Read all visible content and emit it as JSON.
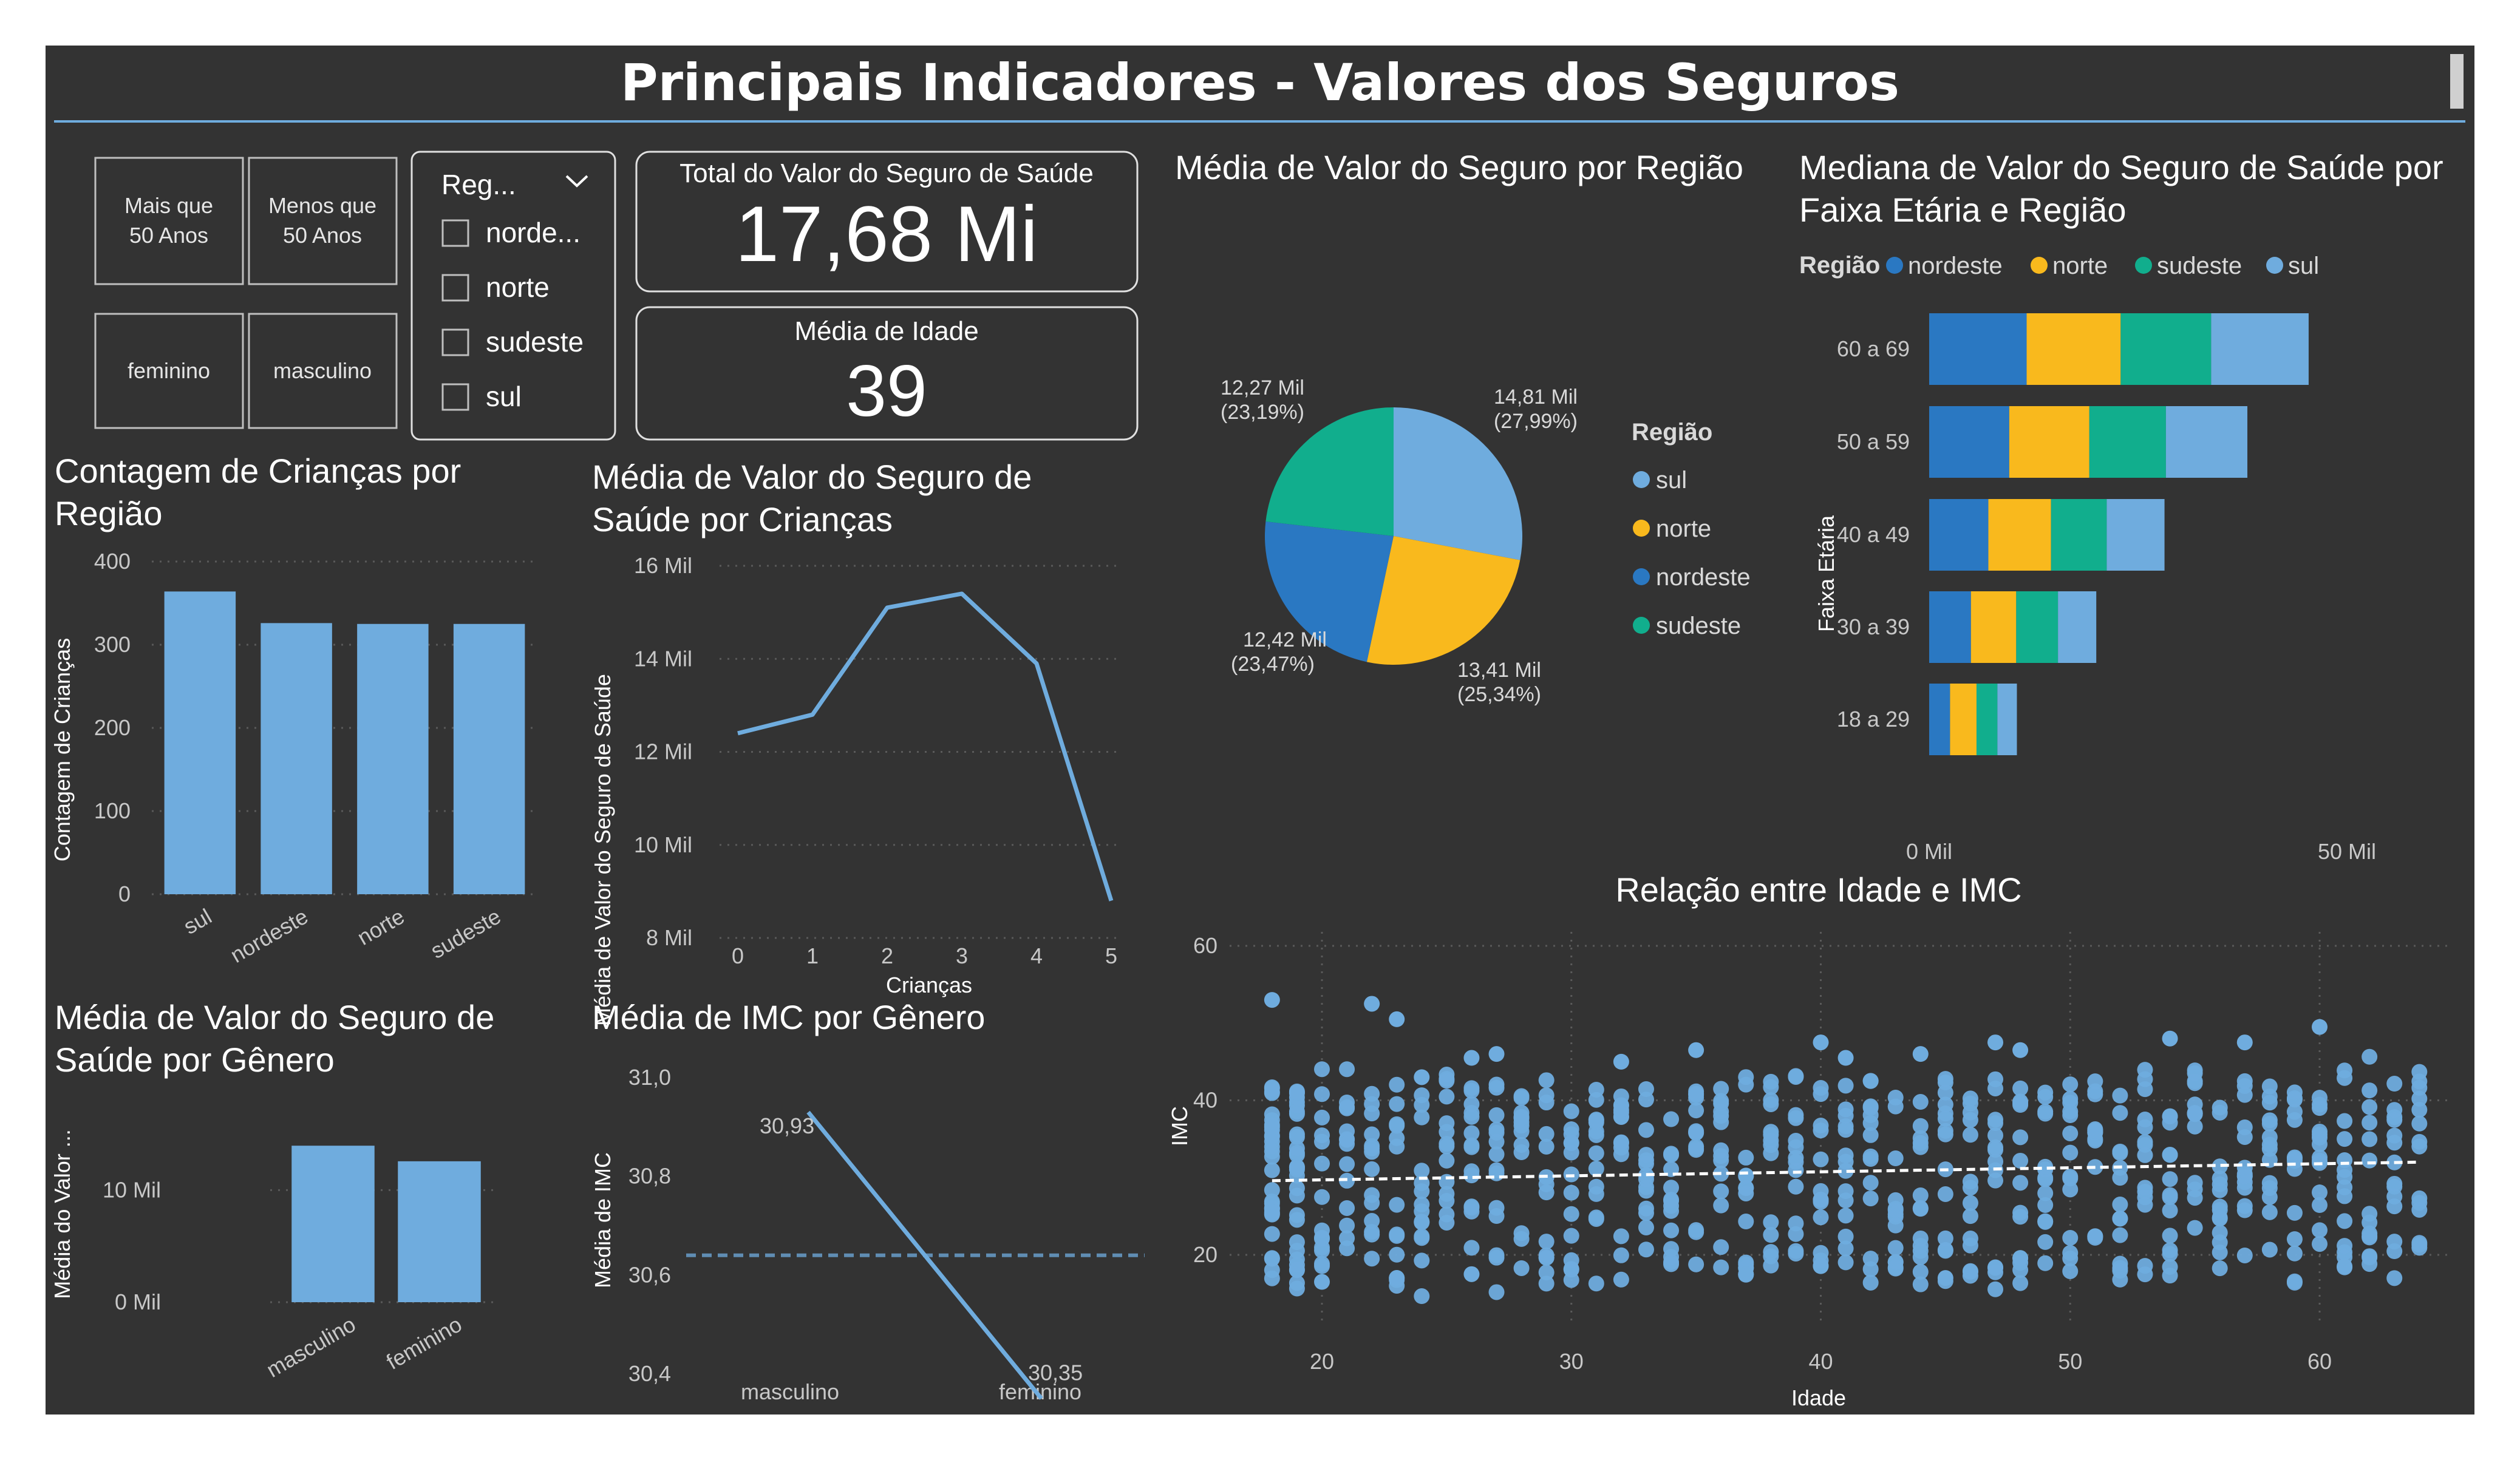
{
  "header": {
    "title": "Principais Indicadores - Valores dos Seguros"
  },
  "colors": {
    "background": "#333333",
    "bar": "#6FACDE",
    "nordeste": "#2A78C2",
    "norte": "#F9B91D",
    "sudeste": "#11AE8D",
    "sul": "#6FACDE",
    "accent_line": "#6FACDE"
  },
  "buttons": [
    "Mais que 50 Anos",
    "Menos que 50 Anos",
    "feminino",
    "masculino"
  ],
  "slicer": {
    "title": "Reg...",
    "items": [
      "norde...",
      "norte",
      "sudeste",
      "sul"
    ]
  },
  "cards": {
    "total_title": "Total do Valor do Seguro de Saúde",
    "total_value": "17,68 Mi",
    "idade_title": "Média de Idade",
    "idade_value": "39"
  },
  "chart_data": [
    {
      "id": "criancas_regiao",
      "type": "bar",
      "title": "Contagem de Crianças por Região",
      "ylabel": "Contagem de Crianças",
      "xlabel": "",
      "categories": [
        "sul",
        "nordeste",
        "norte",
        "sudeste"
      ],
      "values": [
        364,
        326,
        325,
        325
      ],
      "ylim": [
        0,
        400
      ],
      "yticks": [
        "0",
        "100",
        "200",
        "300",
        "400"
      ]
    },
    {
      "id": "seguro_criancas",
      "type": "line",
      "title": "Média de Valor do Seguro de Saúde por Crianças",
      "xlabel": "Crianças",
      "ylabel": "Média de Valor do Seguro de Saúde",
      "x": [
        0,
        1,
        2,
        3,
        4,
        5
      ],
      "values": [
        12.4,
        12.8,
        15.1,
        15.4,
        13.9,
        8.8
      ],
      "ylim": [
        8,
        16
      ],
      "yticks": [
        "8 Mil",
        "10 Mil",
        "12 Mil",
        "14 Mil",
        "16 Mil"
      ]
    },
    {
      "id": "seguro_genero",
      "type": "bar",
      "title": "Média de Valor do Seguro de Saúde por Gênero",
      "ylabel": "Média do Valor ...",
      "xlabel": "",
      "categories": [
        "masculino",
        "feminino"
      ],
      "values": [
        13.96,
        12.57
      ],
      "ylim": [
        0,
        15
      ],
      "yticks": [
        "0 Mil",
        "10 Mil"
      ]
    },
    {
      "id": "imc_genero",
      "type": "line",
      "title": "Média de IMC por Gênero",
      "ylabel": "Média de IMC",
      "xlabel": "",
      "categories": [
        "masculino",
        "feminino"
      ],
      "values": [
        30.93,
        30.35
      ],
      "labels": [
        "30,93",
        "30,35"
      ],
      "average": 30.64,
      "ylim": [
        30.35,
        31.05
      ],
      "yticks": [
        "30,4",
        "30,6",
        "30,8",
        "31,0"
      ]
    },
    {
      "id": "seguro_regiao",
      "type": "pie",
      "title": "Média de Valor do Seguro por Região",
      "legend_title": "Região",
      "slices": [
        {
          "name": "sul",
          "value": 14.81,
          "label": "14,81 Mil",
          "pct": "(27,99%)"
        },
        {
          "name": "norte",
          "value": 13.41,
          "label": "13,41 Mil",
          "pct": "(25,34%)"
        },
        {
          "name": "nordeste",
          "value": 12.42,
          "label": "12,42 Mil",
          "pct": "(23,47%)"
        },
        {
          "name": "sudeste",
          "value": 12.27,
          "label": "12,27 Mil",
          "pct": "(23,19%)"
        }
      ],
      "legend": [
        "sul",
        "norte",
        "nordeste",
        "sudeste"
      ]
    },
    {
      "id": "mediana_faixa",
      "type": "bar",
      "orientation": "horizontal",
      "stacked": true,
      "title": "Mediana de Valor do Seguro de Saúde por Faixa Etária e Região",
      "legend_title": "Região",
      "ylabel": "Faixa Etária",
      "categories": [
        "60 a 69",
        "50 a 59",
        "40 a 49",
        "30 a 39",
        "18 a 29"
      ],
      "series": [
        {
          "name": "nordeste",
          "values": [
            14.0,
            11.5,
            8.5,
            6.0,
            3.0
          ]
        },
        {
          "name": "norte",
          "values": [
            13.5,
            11.5,
            9.0,
            6.5,
            3.8
          ]
        },
        {
          "name": "sudeste",
          "values": [
            13.0,
            11.0,
            8.0,
            6.0,
            3.0
          ]
        },
        {
          "name": "sul",
          "values": [
            14.0,
            11.7,
            8.3,
            5.5,
            2.8
          ]
        }
      ],
      "xlim": [
        0,
        60
      ],
      "xticks": [
        "0 Mil",
        "50 Mil"
      ]
    },
    {
      "id": "idade_imc",
      "type": "scatter",
      "title": "Relação entre Idade e IMC",
      "xlabel": "Idade",
      "ylabel": "IMC",
      "xlim": [
        16,
        65
      ],
      "ylim": [
        14,
        62
      ],
      "xticks": [
        "20",
        "30",
        "40",
        "50",
        "60"
      ],
      "yticks": [
        "20",
        "40",
        "60"
      ],
      "trend": {
        "x": [
          18,
          64
        ],
        "y": [
          29.6,
          32.0
        ]
      },
      "outliers": [
        [
          18,
          53
        ],
        [
          22,
          52.5
        ],
        [
          23,
          50.5
        ],
        [
          24,
          43
        ],
        [
          26,
          45.5
        ],
        [
          27,
          46
        ],
        [
          32,
          45
        ],
        [
          35,
          46.5
        ],
        [
          40,
          47.5
        ],
        [
          41,
          45.5
        ],
        [
          44,
          46
        ],
        [
          47,
          47.5
        ],
        [
          48,
          46.5
        ],
        [
          54,
          48
        ],
        [
          57,
          47.5
        ],
        [
          60,
          49.5
        ],
        [
          61,
          18.5
        ],
        [
          45,
          17
        ],
        [
          37,
          17.5
        ],
        [
          26,
          17.5
        ],
        [
          20,
          16.5
        ]
      ]
    }
  ]
}
